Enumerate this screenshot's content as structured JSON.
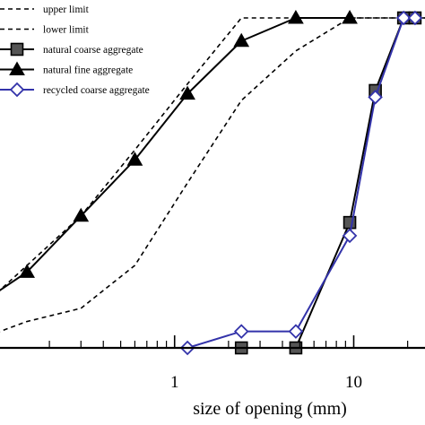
{
  "chart_data": {
    "type": "line",
    "xlabel": "size of opening  (mm)",
    "ylabel": "",
    "xscale": "log",
    "xlim": [
      0.075,
      25
    ],
    "ylim": [
      0,
      100
    ],
    "xticks": [
      {
        "value": 1,
        "label": "1"
      },
      {
        "value": 10,
        "label": "10"
      }
    ],
    "grid": false,
    "legend_position": "top-left",
    "series": [
      {
        "name": "upper limit",
        "style": "dashed",
        "color": "#000000",
        "marker": "none",
        "points": [
          [
            0.075,
            10
          ],
          [
            0.15,
            25
          ],
          [
            0.3,
            40
          ],
          [
            0.6,
            60
          ],
          [
            1.18,
            80
          ],
          [
            2.36,
            100
          ],
          [
            4.75,
            100
          ],
          [
            9.5,
            100
          ],
          [
            19,
            100
          ],
          [
            25,
            100
          ]
        ]
      },
      {
        "name": "lower limit",
        "style": "dashed",
        "color": "#000000",
        "marker": "none",
        "points": [
          [
            0.075,
            2
          ],
          [
            0.15,
            8
          ],
          [
            0.3,
            12
          ],
          [
            0.6,
            25
          ],
          [
            1.18,
            50
          ],
          [
            2.36,
            75
          ],
          [
            4.75,
            90
          ],
          [
            9.5,
            100
          ],
          [
            19,
            100
          ],
          [
            25,
            100
          ]
        ]
      },
      {
        "name": "natural coarse aggregate",
        "style": "solid",
        "color": "#000000",
        "marker": "square",
        "marker_fill": "#555555",
        "points": [
          [
            2.36,
            0
          ],
          [
            4.75,
            0
          ],
          [
            9.5,
            38
          ],
          [
            13.2,
            78
          ],
          [
            19,
            100
          ],
          [
            22,
            100
          ]
        ]
      },
      {
        "name": "natural fine aggregate",
        "style": "solid",
        "color": "#000000",
        "marker": "triangle",
        "marker_fill": "#000000",
        "points": [
          [
            0.075,
            12
          ],
          [
            0.15,
            23
          ],
          [
            0.3,
            40
          ],
          [
            0.6,
            57
          ],
          [
            1.18,
            77
          ],
          [
            2.36,
            93
          ],
          [
            4.75,
            100
          ],
          [
            9.5,
            100
          ]
        ]
      },
      {
        "name": "recycled coarse aggregate",
        "style": "solid",
        "color": "#3333aa",
        "marker": "diamond",
        "marker_fill": "#ffffff",
        "points": [
          [
            1.18,
            0
          ],
          [
            2.36,
            5
          ],
          [
            4.75,
            5
          ],
          [
            9.5,
            34
          ],
          [
            13.2,
            76
          ],
          [
            19,
            100
          ],
          [
            22,
            100
          ]
        ]
      }
    ]
  }
}
